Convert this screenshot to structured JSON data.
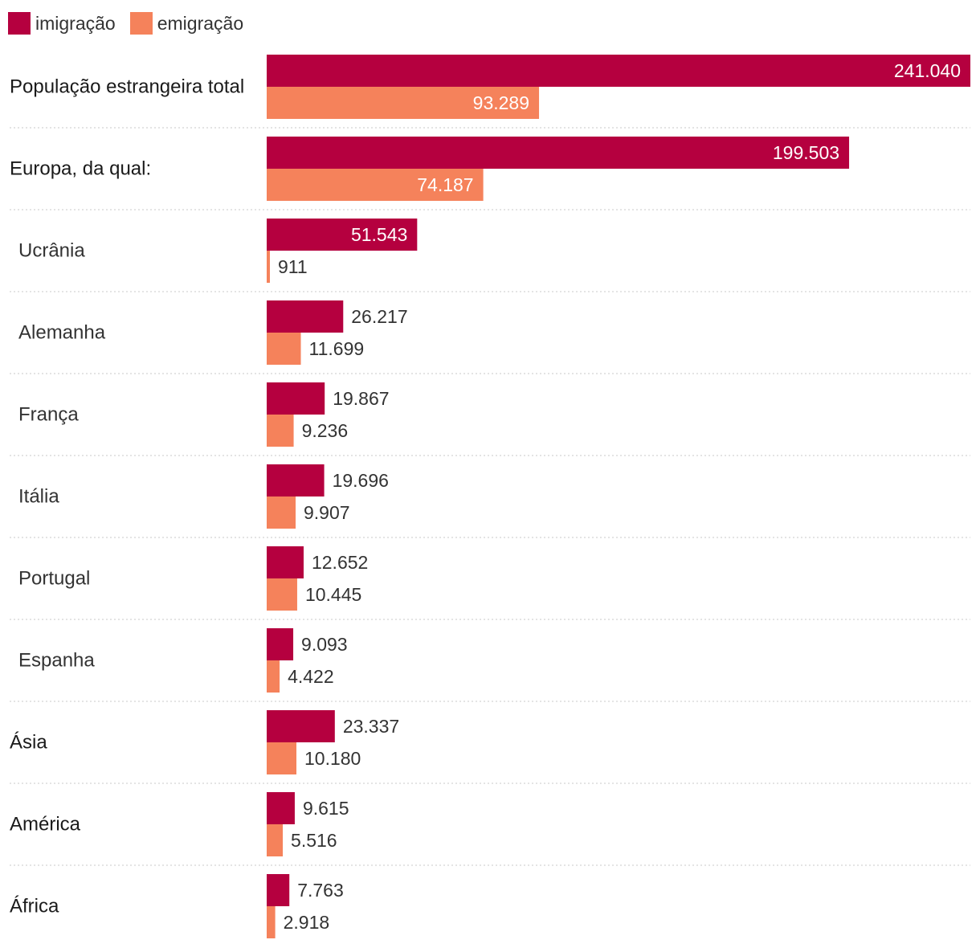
{
  "chart_data": {
    "type": "bar",
    "orientation": "horizontal",
    "title": "",
    "xlabel": "",
    "ylabel": "",
    "series": [
      {
        "name": "imigração",
        "color": "#b5003f"
      },
      {
        "name": "emigração",
        "color": "#f5825b"
      }
    ],
    "xlim": [
      0,
      241040
    ],
    "grid": false,
    "legend_position": "top-left",
    "categories": [
      {
        "label": "População estrangeira total",
        "level": "main",
        "values": [
          241040,
          93289
        ],
        "value_labels": [
          "241.040",
          "93.289"
        ]
      },
      {
        "label": "Europa, da qual:",
        "level": "main",
        "values": [
          199503,
          74187
        ],
        "value_labels": [
          "199.503",
          "74.187"
        ]
      },
      {
        "label": "Ucrânia",
        "level": "sub",
        "values": [
          51543,
          911
        ],
        "value_labels": [
          "51.543",
          "911"
        ]
      },
      {
        "label": "Alemanha",
        "level": "sub",
        "values": [
          26217,
          11699
        ],
        "value_labels": [
          "26.217",
          "11.699"
        ]
      },
      {
        "label": "França",
        "level": "sub",
        "values": [
          19867,
          9236
        ],
        "value_labels": [
          "19.867",
          "9.236"
        ]
      },
      {
        "label": "Itália",
        "level": "sub",
        "values": [
          19696,
          9907
        ],
        "value_labels": [
          "19.696",
          "9.907"
        ]
      },
      {
        "label": "Portugal",
        "level": "sub",
        "values": [
          12652,
          10445
        ],
        "value_labels": [
          "12.652",
          "10.445"
        ]
      },
      {
        "label": "Espanha",
        "level": "sub",
        "values": [
          9093,
          4422
        ],
        "value_labels": [
          "9.093",
          "4.422"
        ]
      },
      {
        "label": "Ásia",
        "level": "main",
        "values": [
          23337,
          10180
        ],
        "value_labels": [
          "23.337",
          "10.180"
        ]
      },
      {
        "label": "América",
        "level": "main",
        "values": [
          9615,
          5516
        ],
        "value_labels": [
          "9.615",
          "5.516"
        ]
      },
      {
        "label": "África",
        "level": "main",
        "values": [
          7763,
          2918
        ],
        "value_labels": [
          "7.763",
          "2.918"
        ]
      }
    ]
  }
}
